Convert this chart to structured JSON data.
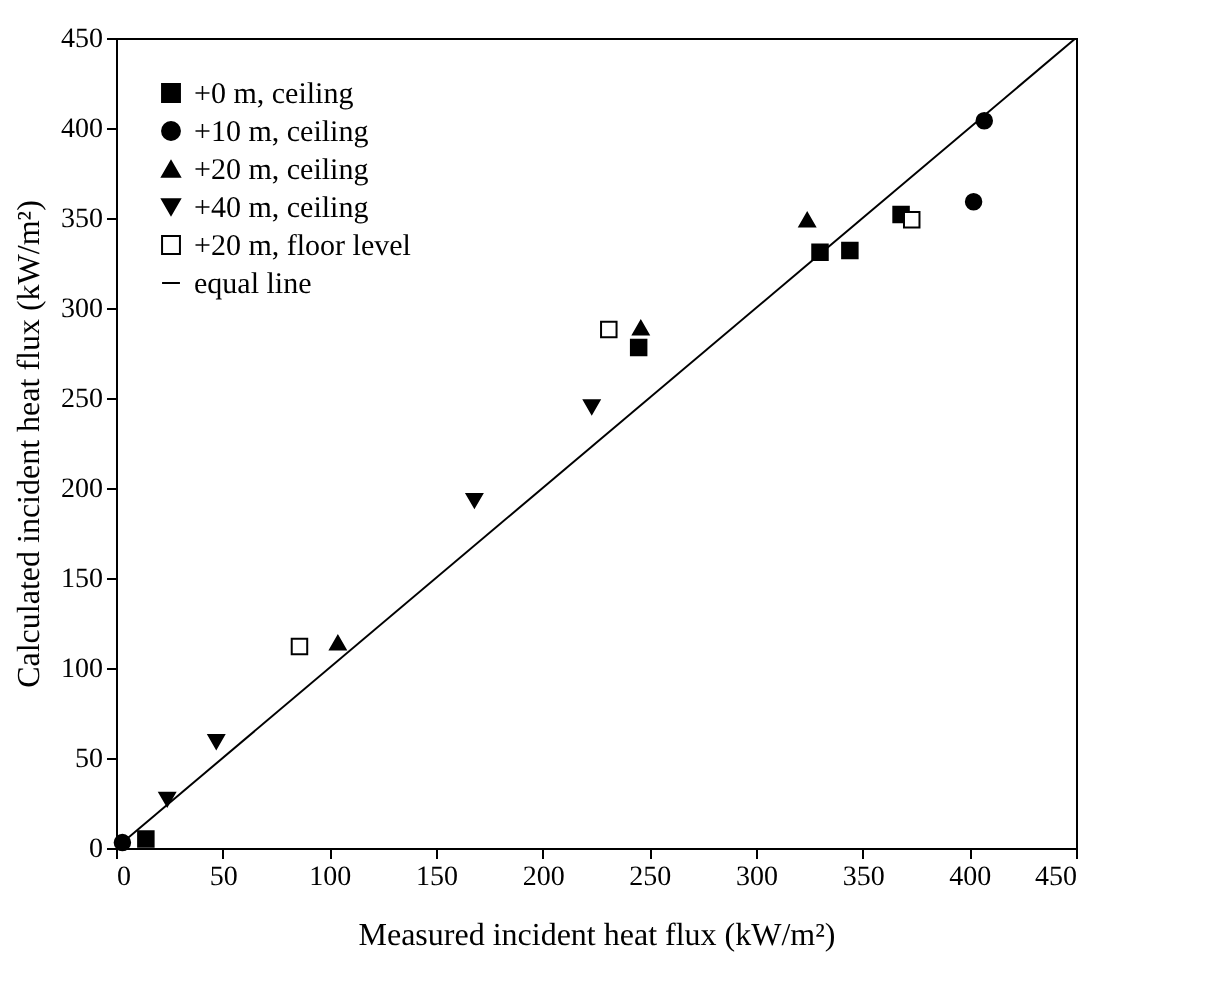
{
  "chart_data": {
    "type": "scatter",
    "xlabel": "Measured incident heat flux (kW/m²)",
    "ylabel": "Calculated incident heat flux (kW/m²)",
    "xlim": [
      0,
      450
    ],
    "ylim": [
      0,
      450
    ],
    "xticks": [
      0,
      50,
      100,
      150,
      200,
      250,
      300,
      350,
      400,
      450
    ],
    "yticks": [
      0,
      50,
      100,
      150,
      200,
      250,
      300,
      350,
      400,
      450
    ],
    "legend": "top left",
    "grid": false,
    "series": [
      {
        "name": "+0 m, ceiling",
        "marker": "square",
        "color": "#000000",
        "x": [
          14,
          245,
          330,
          344,
          368
        ],
        "values": [
          5,
          278,
          331,
          332,
          352
        ]
      },
      {
        "name": "+10 m, ceiling",
        "marker": "circle",
        "color": "#000000",
        "x": [
          3,
          402,
          407
        ],
        "values": [
          3,
          359,
          404
        ]
      },
      {
        "name": "+20 m, ceiling",
        "marker": "triangle",
        "color": "#000000",
        "x": [
          104,
          246,
          324
        ],
        "values": [
          114,
          289,
          349
        ]
      },
      {
        "name": "+40 m, ceiling",
        "marker": "triangle-down",
        "color": "#000000",
        "x": [
          24,
          47,
          168,
          223
        ],
        "values": [
          27,
          59,
          193,
          245
        ]
      },
      {
        "name": "+20 m, floor level",
        "marker": "square",
        "color": "#ffffff",
        "x": [
          86,
          231,
          373
        ],
        "values": [
          112,
          288,
          349
        ]
      },
      {
        "name": "equal line",
        "type": "line",
        "color": "#000000",
        "x": [
          0,
          450
        ],
        "values": [
          0,
          450
        ]
      }
    ]
  }
}
